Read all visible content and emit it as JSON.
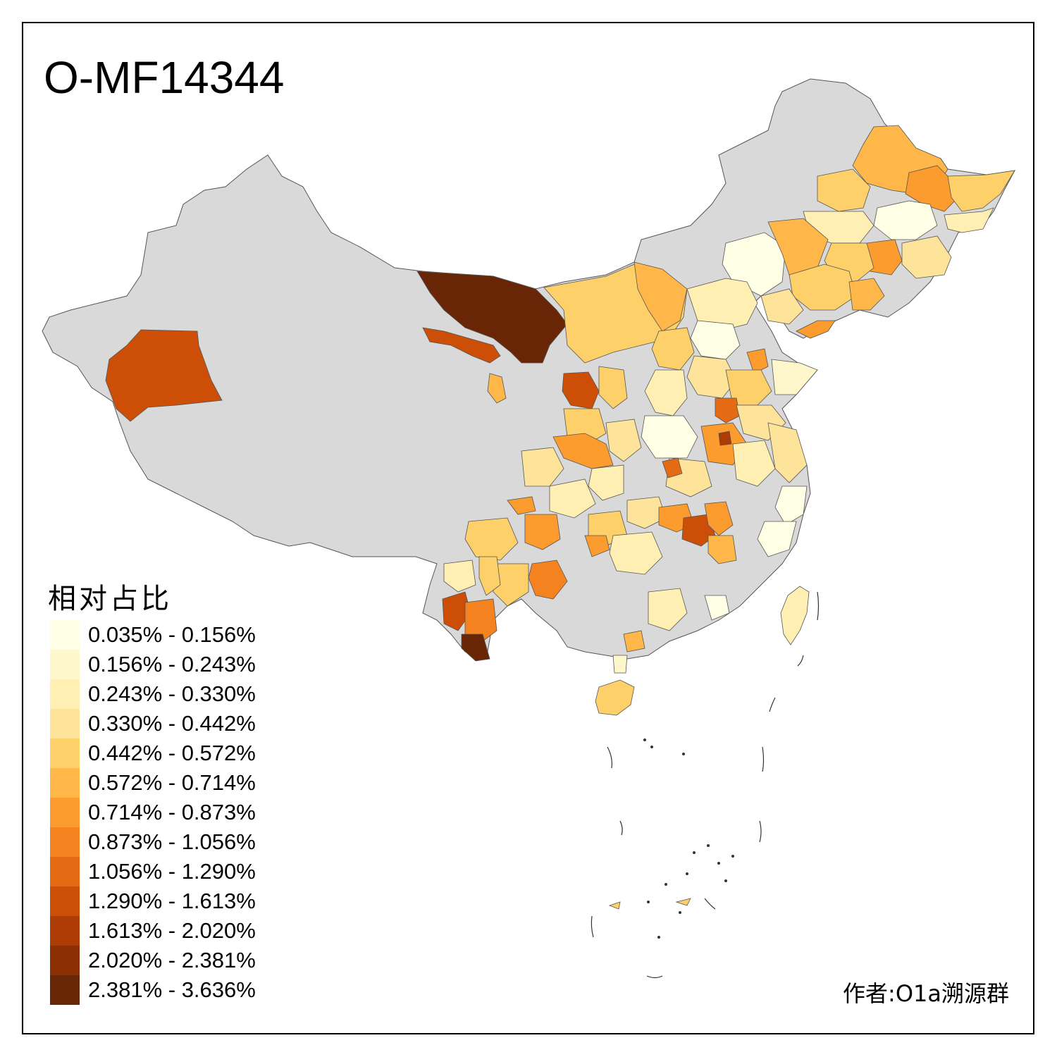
{
  "title": "O-MF14344",
  "legend": {
    "title": "相对占比",
    "items": [
      {
        "label": "0.035% - 0.156%",
        "color": "#ffffe5"
      },
      {
        "label": "0.156% - 0.243%",
        "color": "#fff7cc"
      },
      {
        "label": "0.243% - 0.330%",
        "color": "#ffefb3"
      },
      {
        "label": "0.330% - 0.442%",
        "color": "#fee49a"
      },
      {
        "label": "0.442% - 0.572%",
        "color": "#fed06a"
      },
      {
        "label": "0.572% - 0.714%",
        "color": "#feb748"
      },
      {
        "label": "0.714% - 0.873%",
        "color": "#fc9c2e"
      },
      {
        "label": "0.873% - 1.056%",
        "color": "#f4831f"
      },
      {
        "label": "1.056% - 1.290%",
        "color": "#e46a13"
      },
      {
        "label": "1.290% - 1.613%",
        "color": "#cc4e07"
      },
      {
        "label": "1.613% - 2.020%",
        "color": "#ac3c04"
      },
      {
        "label": "2.020% - 2.381%",
        "color": "#8c3004"
      },
      {
        "label": "2.381% - 3.636%",
        "color": "#692607"
      }
    ]
  },
  "no_data_color": "#d9d9d9",
  "author": "作者:O1a溯源群"
}
